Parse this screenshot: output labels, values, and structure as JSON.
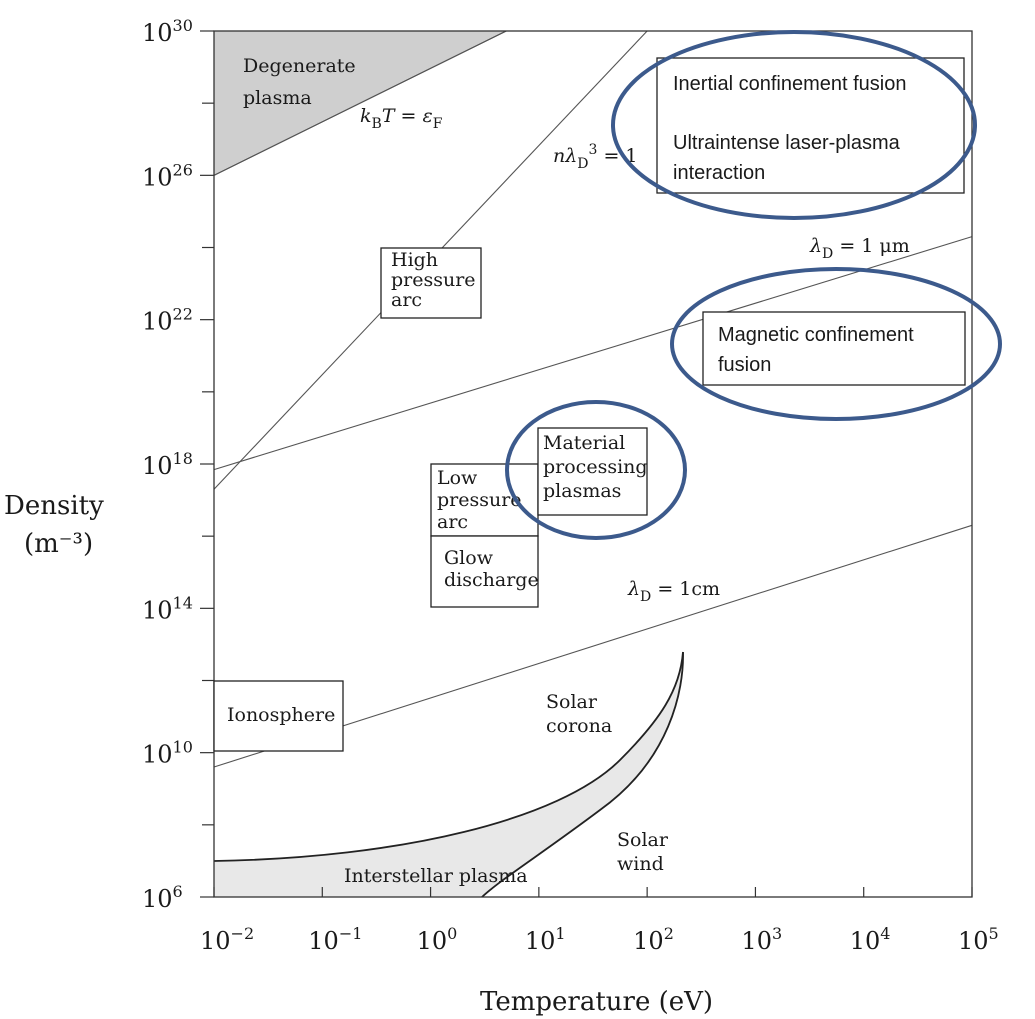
{
  "chart_data": {
    "type": "scatter",
    "xlabel": "Temperature (eV)",
    "ylabel_line1": "Density",
    "ylabel_line2": "(m⁻³)",
    "xscale": "log",
    "yscale": "log",
    "xlim": [
      0.01,
      100000
    ],
    "ylim": [
      1000000,
      1e+30
    ],
    "x_tick_labels": [
      {
        "base": "10",
        "exp": "−2"
      },
      {
        "base": "10",
        "exp": "−1"
      },
      {
        "base": "10",
        "exp": "0"
      },
      {
        "base": "10",
        "exp": "1"
      },
      {
        "base": "10",
        "exp": "2"
      },
      {
        "base": "10",
        "exp": "3"
      },
      {
        "base": "10",
        "exp": "4"
      },
      {
        "base": "10",
        "exp": "5"
      }
    ],
    "y_tick_labels": [
      {
        "base": "10",
        "exp": "6"
      },
      {
        "base": "10",
        "exp": "10"
      },
      {
        "base": "10",
        "exp": "14"
      },
      {
        "base": "10",
        "exp": "18"
      },
      {
        "base": "10",
        "exp": "22"
      },
      {
        "base": "10",
        "exp": "26"
      },
      {
        "base": "10",
        "exp": "30"
      }
    ],
    "boundary_lines": [
      {
        "label": "kBT = εF",
        "points": [
          {
            "T": 0.01,
            "n": 1e+26
          },
          {
            "T": 5,
            "n": 1e+30
          }
        ]
      },
      {
        "label": "nλD³ = 1",
        "points": [
          {
            "T": 0.01,
            "n": 2e+17
          },
          {
            "T": 100,
            "n": 1e+30
          }
        ]
      },
      {
        "label": "λD = 1 μm",
        "points": [
          {
            "T": 0.01,
            "n": 7e+17
          },
          {
            "T": 100000,
            "n": 2e+24
          }
        ]
      },
      {
        "label": "λD = 1cm",
        "points": [
          {
            "T": 0.01,
            "n": 4000000000.0
          },
          {
            "T": 100000,
            "n": 2e+16
          }
        ]
      }
    ],
    "regions": [
      {
        "label_lines": [
          "Degenerate",
          "plasma"
        ],
        "shaded": true
      },
      {
        "label_lines": [
          "High",
          "pressure",
          "arc"
        ],
        "T_range": [
          0.6,
          5
        ],
        "n_range": [
          1e+21,
          2e+23
        ]
      },
      {
        "label_lines": [
          "Low",
          "pressure",
          "arc"
        ],
        "T_range": [
          1,
          10
        ],
        "n_range": [
          3e+16,
          1e+18
        ]
      },
      {
        "label_lines": [
          "Material",
          "processing",
          "plasmas"
        ],
        "T_range": [
          10,
          100
        ],
        "n_range": [
          1e+17,
          3e+18
        ]
      },
      {
        "label_lines": [
          "Glow",
          "discharge"
        ],
        "T_range": [
          1,
          10
        ],
        "n_range": [
          100000000000000.0,
          3e+16
        ]
      },
      {
        "label_lines": [
          "Ionosphere"
        ],
        "T_range": [
          0.01,
          0.15
        ],
        "n_range": [
          10000000000.0,
          2000000000000.0
        ]
      },
      {
        "label_lines": [
          "Solar",
          "corona"
        ]
      },
      {
        "label_lines": [
          "Solar",
          "wind"
        ]
      },
      {
        "label_lines": [
          "Interstellar plasma"
        ]
      }
    ],
    "highlighted_regions": [
      {
        "label_lines": [
          "Inertial confinement fusion",
          "",
          "Ultraintense laser-plasma",
          "interaction"
        ]
      },
      {
        "label_lines": [
          "Magnetic confinement",
          "fusion"
        ]
      }
    ],
    "highlight_color": "#3c5a8c",
    "shade_color_dark": "#cfcfcf",
    "shade_color_light": "#e8e8e8"
  }
}
